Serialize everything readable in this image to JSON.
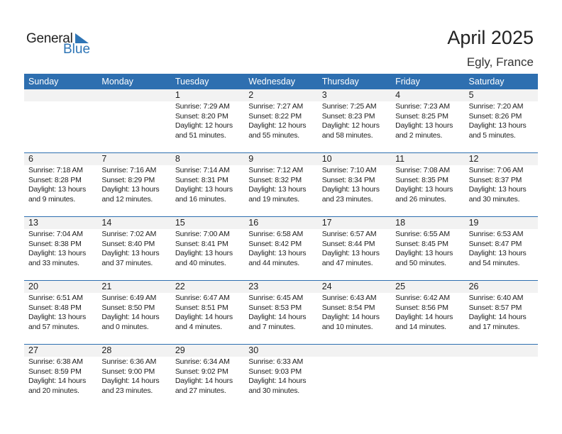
{
  "logo": {
    "text_general": "General",
    "text_blue": "Blue"
  },
  "header": {
    "title": "April 2025",
    "location": "Egly, France"
  },
  "days": [
    "Sunday",
    "Monday",
    "Tuesday",
    "Wednesday",
    "Thursday",
    "Friday",
    "Saturday"
  ],
  "colors": {
    "accent": "#2e6fb0",
    "band": "#f2f2f2"
  },
  "weeks": [
    [
      null,
      null,
      {
        "day": "1",
        "sunrise": "Sunrise: 7:29 AM",
        "sunset": "Sunset: 8:20 PM",
        "daylight1": "Daylight: 12 hours",
        "daylight2": "and 51 minutes."
      },
      {
        "day": "2",
        "sunrise": "Sunrise: 7:27 AM",
        "sunset": "Sunset: 8:22 PM",
        "daylight1": "Daylight: 12 hours",
        "daylight2": "and 55 minutes."
      },
      {
        "day": "3",
        "sunrise": "Sunrise: 7:25 AM",
        "sunset": "Sunset: 8:23 PM",
        "daylight1": "Daylight: 12 hours",
        "daylight2": "and 58 minutes."
      },
      {
        "day": "4",
        "sunrise": "Sunrise: 7:23 AM",
        "sunset": "Sunset: 8:25 PM",
        "daylight1": "Daylight: 13 hours",
        "daylight2": "and 2 minutes."
      },
      {
        "day": "5",
        "sunrise": "Sunrise: 7:20 AM",
        "sunset": "Sunset: 8:26 PM",
        "daylight1": "Daylight: 13 hours",
        "daylight2": "and 5 minutes."
      }
    ],
    [
      {
        "day": "6",
        "sunrise": "Sunrise: 7:18 AM",
        "sunset": "Sunset: 8:28 PM",
        "daylight1": "Daylight: 13 hours",
        "daylight2": "and 9 minutes."
      },
      {
        "day": "7",
        "sunrise": "Sunrise: 7:16 AM",
        "sunset": "Sunset: 8:29 PM",
        "daylight1": "Daylight: 13 hours",
        "daylight2": "and 12 minutes."
      },
      {
        "day": "8",
        "sunrise": "Sunrise: 7:14 AM",
        "sunset": "Sunset: 8:31 PM",
        "daylight1": "Daylight: 13 hours",
        "daylight2": "and 16 minutes."
      },
      {
        "day": "9",
        "sunrise": "Sunrise: 7:12 AM",
        "sunset": "Sunset: 8:32 PM",
        "daylight1": "Daylight: 13 hours",
        "daylight2": "and 19 minutes."
      },
      {
        "day": "10",
        "sunrise": "Sunrise: 7:10 AM",
        "sunset": "Sunset: 8:34 PM",
        "daylight1": "Daylight: 13 hours",
        "daylight2": "and 23 minutes."
      },
      {
        "day": "11",
        "sunrise": "Sunrise: 7:08 AM",
        "sunset": "Sunset: 8:35 PM",
        "daylight1": "Daylight: 13 hours",
        "daylight2": "and 26 minutes."
      },
      {
        "day": "12",
        "sunrise": "Sunrise: 7:06 AM",
        "sunset": "Sunset: 8:37 PM",
        "daylight1": "Daylight: 13 hours",
        "daylight2": "and 30 minutes."
      }
    ],
    [
      {
        "day": "13",
        "sunrise": "Sunrise: 7:04 AM",
        "sunset": "Sunset: 8:38 PM",
        "daylight1": "Daylight: 13 hours",
        "daylight2": "and 33 minutes."
      },
      {
        "day": "14",
        "sunrise": "Sunrise: 7:02 AM",
        "sunset": "Sunset: 8:40 PM",
        "daylight1": "Daylight: 13 hours",
        "daylight2": "and 37 minutes."
      },
      {
        "day": "15",
        "sunrise": "Sunrise: 7:00 AM",
        "sunset": "Sunset: 8:41 PM",
        "daylight1": "Daylight: 13 hours",
        "daylight2": "and 40 minutes."
      },
      {
        "day": "16",
        "sunrise": "Sunrise: 6:58 AM",
        "sunset": "Sunset: 8:42 PM",
        "daylight1": "Daylight: 13 hours",
        "daylight2": "and 44 minutes."
      },
      {
        "day": "17",
        "sunrise": "Sunrise: 6:57 AM",
        "sunset": "Sunset: 8:44 PM",
        "daylight1": "Daylight: 13 hours",
        "daylight2": "and 47 minutes."
      },
      {
        "day": "18",
        "sunrise": "Sunrise: 6:55 AM",
        "sunset": "Sunset: 8:45 PM",
        "daylight1": "Daylight: 13 hours",
        "daylight2": "and 50 minutes."
      },
      {
        "day": "19",
        "sunrise": "Sunrise: 6:53 AM",
        "sunset": "Sunset: 8:47 PM",
        "daylight1": "Daylight: 13 hours",
        "daylight2": "and 54 minutes."
      }
    ],
    [
      {
        "day": "20",
        "sunrise": "Sunrise: 6:51 AM",
        "sunset": "Sunset: 8:48 PM",
        "daylight1": "Daylight: 13 hours",
        "daylight2": "and 57 minutes."
      },
      {
        "day": "21",
        "sunrise": "Sunrise: 6:49 AM",
        "sunset": "Sunset: 8:50 PM",
        "daylight1": "Daylight: 14 hours",
        "daylight2": "and 0 minutes."
      },
      {
        "day": "22",
        "sunrise": "Sunrise: 6:47 AM",
        "sunset": "Sunset: 8:51 PM",
        "daylight1": "Daylight: 14 hours",
        "daylight2": "and 4 minutes."
      },
      {
        "day": "23",
        "sunrise": "Sunrise: 6:45 AM",
        "sunset": "Sunset: 8:53 PM",
        "daylight1": "Daylight: 14 hours",
        "daylight2": "and 7 minutes."
      },
      {
        "day": "24",
        "sunrise": "Sunrise: 6:43 AM",
        "sunset": "Sunset: 8:54 PM",
        "daylight1": "Daylight: 14 hours",
        "daylight2": "and 10 minutes."
      },
      {
        "day": "25",
        "sunrise": "Sunrise: 6:42 AM",
        "sunset": "Sunset: 8:56 PM",
        "daylight1": "Daylight: 14 hours",
        "daylight2": "and 14 minutes."
      },
      {
        "day": "26",
        "sunrise": "Sunrise: 6:40 AM",
        "sunset": "Sunset: 8:57 PM",
        "daylight1": "Daylight: 14 hours",
        "daylight2": "and 17 minutes."
      }
    ],
    [
      {
        "day": "27",
        "sunrise": "Sunrise: 6:38 AM",
        "sunset": "Sunset: 8:59 PM",
        "daylight1": "Daylight: 14 hours",
        "daylight2": "and 20 minutes."
      },
      {
        "day": "28",
        "sunrise": "Sunrise: 6:36 AM",
        "sunset": "Sunset: 9:00 PM",
        "daylight1": "Daylight: 14 hours",
        "daylight2": "and 23 minutes."
      },
      {
        "day": "29",
        "sunrise": "Sunrise: 6:34 AM",
        "sunset": "Sunset: 9:02 PM",
        "daylight1": "Daylight: 14 hours",
        "daylight2": "and 27 minutes."
      },
      {
        "day": "30",
        "sunrise": "Sunrise: 6:33 AM",
        "sunset": "Sunset: 9:03 PM",
        "daylight1": "Daylight: 14 hours",
        "daylight2": "and 30 minutes."
      },
      null,
      null,
      null
    ]
  ]
}
